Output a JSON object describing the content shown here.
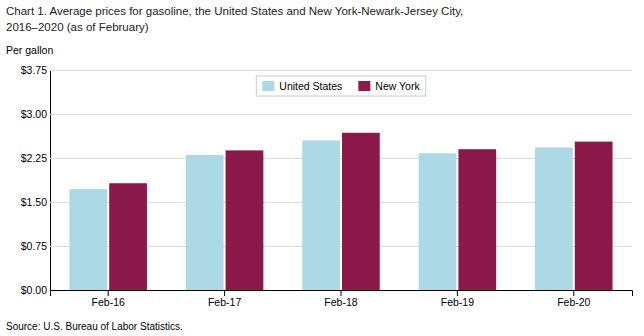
{
  "chart_data": {
    "type": "bar",
    "title": "Chart 1. Average prices for gasoline, the United States and New York-Newark-Jersey City,",
    "subtitle": "2016–2020  (as of February)",
    "y_label": "Per gallon",
    "source": "Source: U.S. Bureau of Labor Statistics.",
    "categories": [
      "Feb-16",
      "Feb-17",
      "Feb-18",
      "Feb-19",
      "Feb-20"
    ],
    "series": [
      {
        "name": "United States",
        "color": "#ADD8E6",
        "values": [
          1.72,
          2.3,
          2.55,
          2.33,
          2.43
        ]
      },
      {
        "name": "New York",
        "color": "#8B1A4A",
        "values": [
          1.82,
          2.38,
          2.68,
          2.4,
          2.53
        ]
      }
    ],
    "ylim": [
      0,
      3.75
    ],
    "yticks": [
      {
        "value": 0.0,
        "label": "$0.00"
      },
      {
        "value": 0.75,
        "label": "$0.75"
      },
      {
        "value": 1.5,
        "label": "$1.50"
      },
      {
        "value": 2.25,
        "label": "$2.25"
      },
      {
        "value": 3.0,
        "label": "$3.00"
      },
      {
        "value": 3.75,
        "label": "$3.75"
      }
    ],
    "grid": true,
    "legend": "top"
  }
}
